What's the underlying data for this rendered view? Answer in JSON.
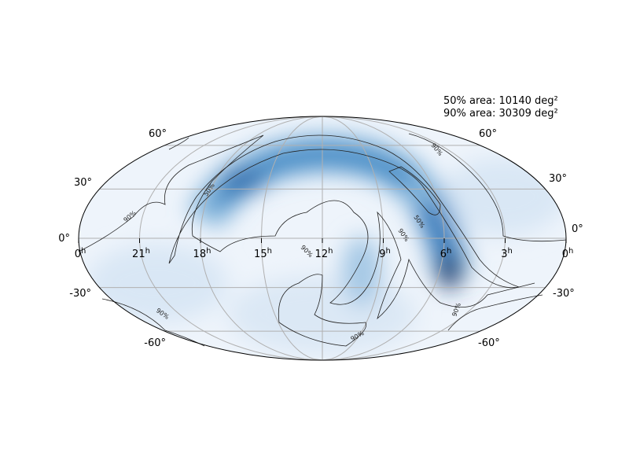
{
  "annotations": [
    "50% area: 10140 deg²",
    "90% area: 30309 deg²"
  ],
  "ra_labels": [
    {
      "value": "0",
      "sup": "h"
    },
    {
      "value": "21",
      "sup": "h"
    },
    {
      "value": "18",
      "sup": "h"
    },
    {
      "value": "15",
      "sup": "h"
    },
    {
      "value": "12",
      "sup": "h"
    },
    {
      "value": "9",
      "sup": "h"
    },
    {
      "value": "6",
      "sup": "h"
    },
    {
      "value": "3",
      "sup": "h"
    },
    {
      "value": "0",
      "sup": "h"
    }
  ],
  "dec_labels": [
    "60°",
    "30°",
    "0°",
    "-30°",
    "-60°"
  ],
  "contour_labels": [
    "90%",
    "50%",
    "90%",
    "90%",
    "50%",
    "90%",
    "90%",
    "90%",
    "90%"
  ]
}
